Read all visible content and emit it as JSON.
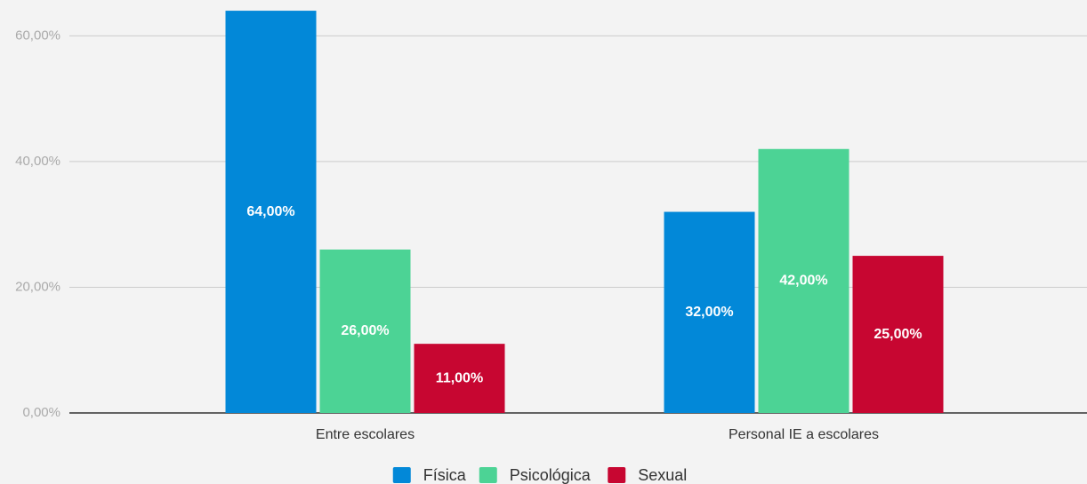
{
  "chart_data": {
    "type": "bar",
    "categories": [
      "Entre escolares",
      "Personal IE a escolares"
    ],
    "series": [
      {
        "name": "Física",
        "color": "#0288d8",
        "values": [
          64,
          32
        ],
        "value_labels": [
          "64,00%",
          "32,00%"
        ]
      },
      {
        "name": "Psicológica",
        "color": "#4cd395",
        "values": [
          26,
          42
        ],
        "value_labels": [
          "26,00%",
          "42,00%"
        ]
      },
      {
        "name": "Sexual",
        "color": "#c70631",
        "values": [
          11,
          25
        ],
        "value_labels": [
          "11,00%",
          "25,00%"
        ]
      }
    ],
    "ylim": [
      0,
      65
    ],
    "yticks": [
      {
        "value": 0,
        "label": "0,00%"
      },
      {
        "value": 20,
        "label": "20,00%"
      },
      {
        "value": 40,
        "label": "40,00%"
      },
      {
        "value": 60,
        "label": "60,00%"
      }
    ],
    "grid": true,
    "legend": "bottom"
  }
}
